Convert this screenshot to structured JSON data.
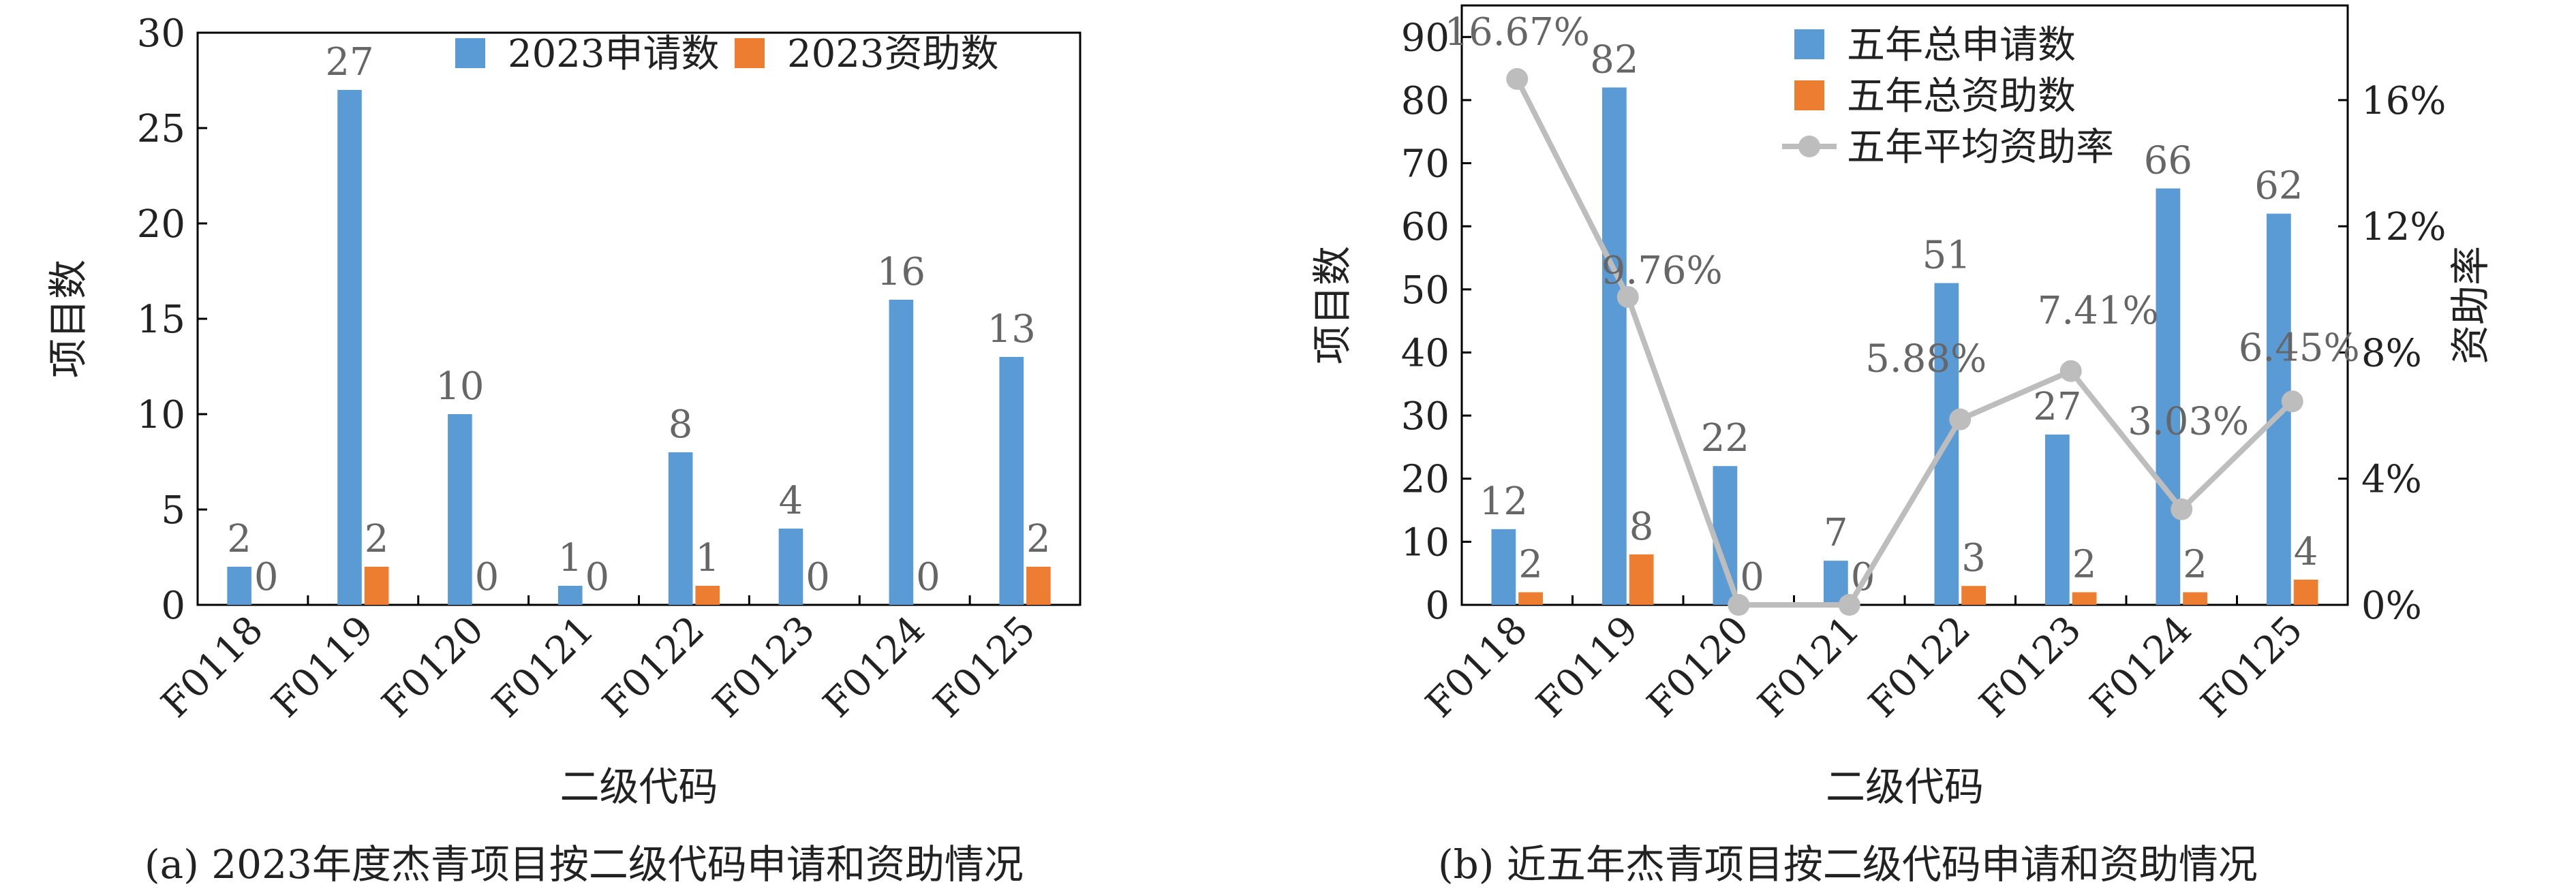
{
  "captions": {
    "a": "(a) 2023年度杰青项目按二级代码申请和资助情况",
    "b": "(b) 近五年杰青项目按二级代码申请和资助情况"
  },
  "colors": {
    "blue": "#5b9bd5",
    "orange": "#ed7d31",
    "gray": "#bdbdbd",
    "label": "#666666"
  },
  "chart_data": [
    {
      "type": "bar",
      "categories": [
        "F0118",
        "F0119",
        "F0120",
        "F0121",
        "F0122",
        "F0123",
        "F0124",
        "F0125"
      ],
      "series": [
        {
          "name": "2023申请数",
          "values": [
            2,
            27,
            10,
            1,
            8,
            4,
            16,
            13
          ]
        },
        {
          "name": "2023资助数",
          "values": [
            0,
            2,
            0,
            0,
            1,
            0,
            0,
            2
          ]
        }
      ],
      "xlabel": "二级代码",
      "ylabel": "项目数",
      "ylim": [
        0,
        30
      ],
      "yticks": [
        0,
        5,
        10,
        15,
        20,
        25,
        30
      ],
      "grid": false,
      "legend": "top-right"
    },
    {
      "type": "bar",
      "categories": [
        "F0118",
        "F0119",
        "F0120",
        "F0121",
        "F0122",
        "F0123",
        "F0124",
        "F0125"
      ],
      "series": [
        {
          "name": "五年总申请数",
          "values": [
            12,
            82,
            22,
            7,
            51,
            27,
            66,
            62
          ]
        },
        {
          "name": "五年总资助数",
          "values": [
            2,
            8,
            0,
            0,
            3,
            2,
            2,
            4
          ]
        },
        {
          "name": "五年平均资助率",
          "type": "line",
          "axis": "right",
          "values": [
            16.67,
            9.76,
            0,
            0,
            5.88,
            7.41,
            3.03,
            6.45
          ],
          "labels": [
            "16.67%",
            "9.76%",
            "",
            "",
            "5.88%",
            "7.41%",
            "3.03%",
            "6.45%"
          ]
        }
      ],
      "xlabel": "二级代码",
      "ylabel": "项目数",
      "ylabel_right": "资助率",
      "ylim": [
        0,
        95
      ],
      "yticks": [
        0,
        10,
        20,
        30,
        40,
        50,
        60,
        70,
        80,
        90
      ],
      "ylim_right": [
        0,
        19
      ],
      "yticks_right": [
        "0%",
        "4%",
        "8%",
        "12%",
        "16%"
      ],
      "grid": false,
      "legend": "top-right"
    }
  ]
}
